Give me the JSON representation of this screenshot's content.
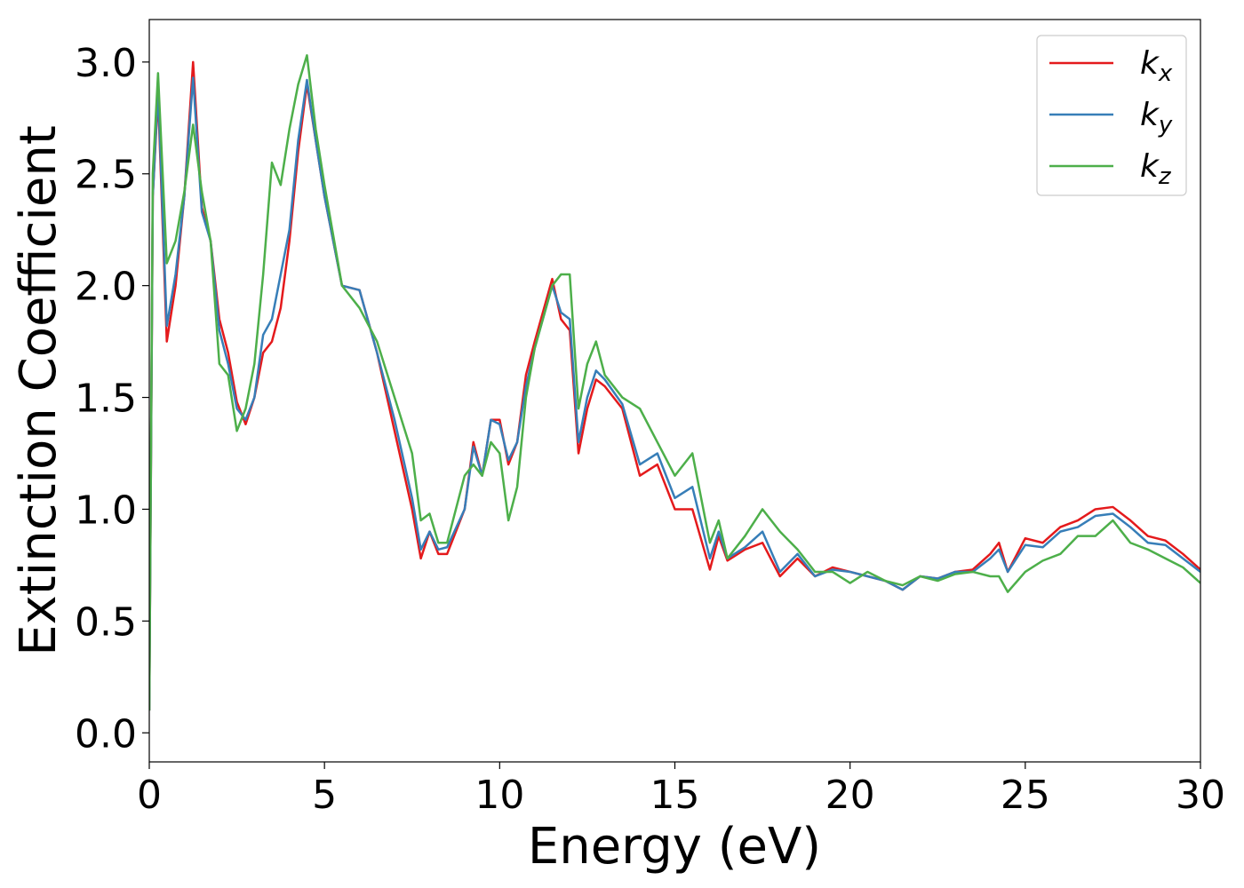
{
  "chart_data": {
    "type": "line",
    "xlabel": "Energy (eV)",
    "ylabel": "Extinction Coefficient",
    "x": [
      0,
      0.1,
      0.25,
      0.5,
      0.75,
      1,
      1.25,
      1.5,
      1.75,
      2,
      2.25,
      2.5,
      2.75,
      3,
      3.25,
      3.5,
      3.75,
      4,
      4.25,
      4.5,
      4.75,
      5,
      5.5,
      6,
      6.5,
      7,
      7.5,
      7.75,
      8,
      8.25,
      8.5,
      9,
      9.25,
      9.5,
      9.75,
      10,
      10.25,
      10.5,
      10.75,
      11,
      11.5,
      11.75,
      12,
      12.25,
      12.5,
      12.75,
      13,
      13.5,
      14,
      14.5,
      15,
      15.5,
      16,
      16.25,
      16.5,
      17,
      17.5,
      18,
      18.5,
      19,
      19.5,
      20,
      20.5,
      21,
      21.5,
      22,
      22.5,
      23,
      23.5,
      24,
      24.25,
      24.5,
      25,
      25.5,
      26,
      26.5,
      27,
      27.5,
      28,
      28.5,
      29,
      29.5,
      30
    ],
    "series": [
      {
        "name": "kx",
        "color": "#e41a1c",
        "values": [
          0.1,
          2.4,
          2.85,
          1.75,
          2.0,
          2.4,
          3.0,
          2.35,
          2.2,
          1.85,
          1.7,
          1.48,
          1.38,
          1.5,
          1.7,
          1.75,
          1.9,
          2.2,
          2.6,
          2.9,
          2.65,
          2.4,
          2.0,
          1.98,
          1.7,
          1.35,
          1.0,
          0.78,
          0.9,
          0.8,
          0.8,
          1.0,
          1.3,
          1.15,
          1.4,
          1.4,
          1.2,
          1.3,
          1.6,
          1.75,
          2.03,
          1.85,
          1.8,
          1.25,
          1.45,
          1.58,
          1.55,
          1.45,
          1.15,
          1.2,
          1.0,
          1.0,
          0.73,
          0.88,
          0.77,
          0.82,
          0.85,
          0.7,
          0.78,
          0.7,
          0.74,
          0.72,
          0.7,
          0.68,
          0.64,
          0.7,
          0.69,
          0.72,
          0.73,
          0.8,
          0.85,
          0.72,
          0.87,
          0.85,
          0.92,
          0.95,
          1.0,
          1.01,
          0.95,
          0.88,
          0.86,
          0.8,
          0.73
        ]
      },
      {
        "name": "ky",
        "color": "#377eb8",
        "values": [
          0.1,
          2.4,
          2.88,
          1.82,
          2.05,
          2.4,
          2.93,
          2.33,
          2.2,
          1.8,
          1.65,
          1.45,
          1.4,
          1.5,
          1.78,
          1.85,
          2.05,
          2.25,
          2.65,
          2.92,
          2.65,
          2.4,
          2.0,
          1.98,
          1.7,
          1.4,
          1.05,
          0.82,
          0.9,
          0.82,
          0.83,
          1.0,
          1.28,
          1.15,
          1.4,
          1.38,
          1.22,
          1.3,
          1.55,
          1.72,
          2.0,
          1.88,
          1.85,
          1.3,
          1.5,
          1.62,
          1.58,
          1.47,
          1.2,
          1.25,
          1.05,
          1.1,
          0.78,
          0.9,
          0.78,
          0.83,
          0.9,
          0.72,
          0.8,
          0.7,
          0.73,
          0.72,
          0.7,
          0.68,
          0.64,
          0.7,
          0.69,
          0.72,
          0.72,
          0.78,
          0.82,
          0.72,
          0.84,
          0.83,
          0.9,
          0.92,
          0.97,
          0.98,
          0.92,
          0.85,
          0.84,
          0.78,
          0.72
        ]
      },
      {
        "name": "kz",
        "color": "#4daf4a",
        "values": [
          0.1,
          2.5,
          2.95,
          2.1,
          2.2,
          2.42,
          2.72,
          2.42,
          2.2,
          1.65,
          1.6,
          1.35,
          1.45,
          1.65,
          2.05,
          2.55,
          2.45,
          2.7,
          2.9,
          3.03,
          2.7,
          2.45,
          2.0,
          1.9,
          1.75,
          1.5,
          1.25,
          0.95,
          0.98,
          0.85,
          0.85,
          1.15,
          1.2,
          1.15,
          1.3,
          1.25,
          0.95,
          1.1,
          1.5,
          1.72,
          2.0,
          2.05,
          2.05,
          1.45,
          1.65,
          1.75,
          1.6,
          1.5,
          1.45,
          1.3,
          1.15,
          1.25,
          0.85,
          0.95,
          0.78,
          0.88,
          1.0,
          0.9,
          0.82,
          0.72,
          0.72,
          0.67,
          0.72,
          0.68,
          0.66,
          0.7,
          0.68,
          0.71,
          0.72,
          0.7,
          0.7,
          0.63,
          0.72,
          0.77,
          0.8,
          0.88,
          0.88,
          0.95,
          0.85,
          0.82,
          0.78,
          0.74,
          0.67
        ]
      }
    ],
    "xlim": [
      0,
      30
    ],
    "xticks": [
      0,
      5,
      10,
      15,
      20,
      25,
      30
    ],
    "ylim": [
      -0.13,
      3.19
    ],
    "yticks": [
      {
        "value": 0,
        "label": "0.0"
      },
      0.5,
      {
        "value": 1,
        "label": "1.0"
      },
      1.5,
      {
        "value": 2,
        "label": "2.0"
      },
      2.5,
      {
        "value": 3,
        "label": "3.0"
      }
    ],
    "grid": false,
    "legend": "upper right"
  }
}
